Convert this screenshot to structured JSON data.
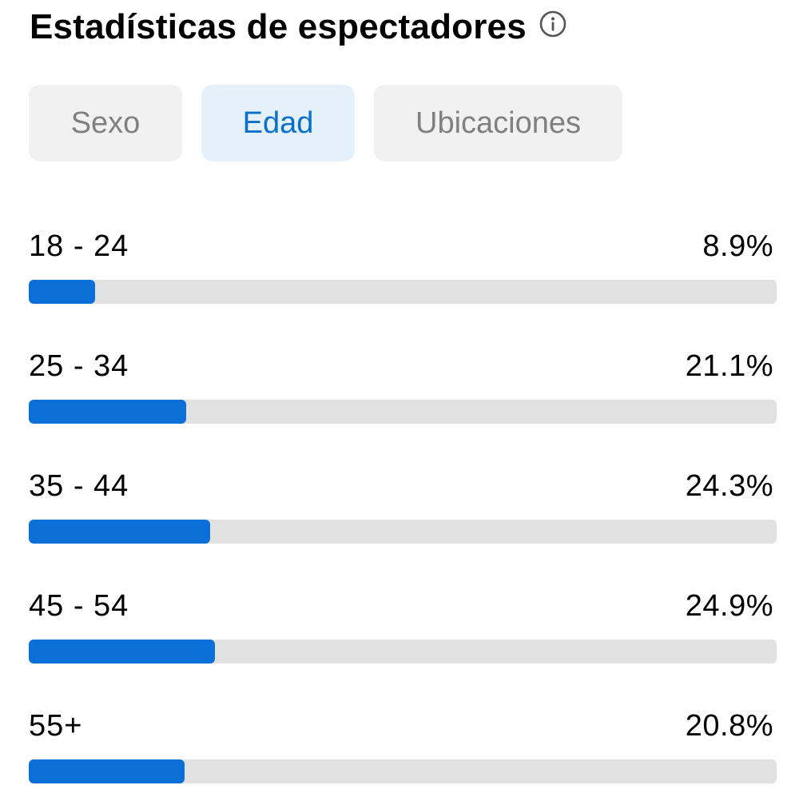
{
  "header": {
    "title": "Estadísticas de espectadores",
    "info_icon": "info-icon"
  },
  "tabs": [
    {
      "label": "Sexo",
      "active": false
    },
    {
      "label": "Edad",
      "active": true
    },
    {
      "label": "Ubicaciones",
      "active": false
    }
  ],
  "colors": {
    "accent": "#0a70d8",
    "active_tab_bg": "#e4f1fb",
    "track": "#e1e1e1"
  },
  "age_groups": [
    {
      "label": "18 - 24",
      "value": "8.9%",
      "percent": 8.9
    },
    {
      "label": "25 - 34",
      "value": "21.1%",
      "percent": 21.1
    },
    {
      "label": "35 - 44",
      "value": "24.3%",
      "percent": 24.3
    },
    {
      "label": "45 - 54",
      "value": "24.9%",
      "percent": 24.9
    },
    {
      "label": "55+",
      "value": "20.8%",
      "percent": 20.8
    }
  ]
}
